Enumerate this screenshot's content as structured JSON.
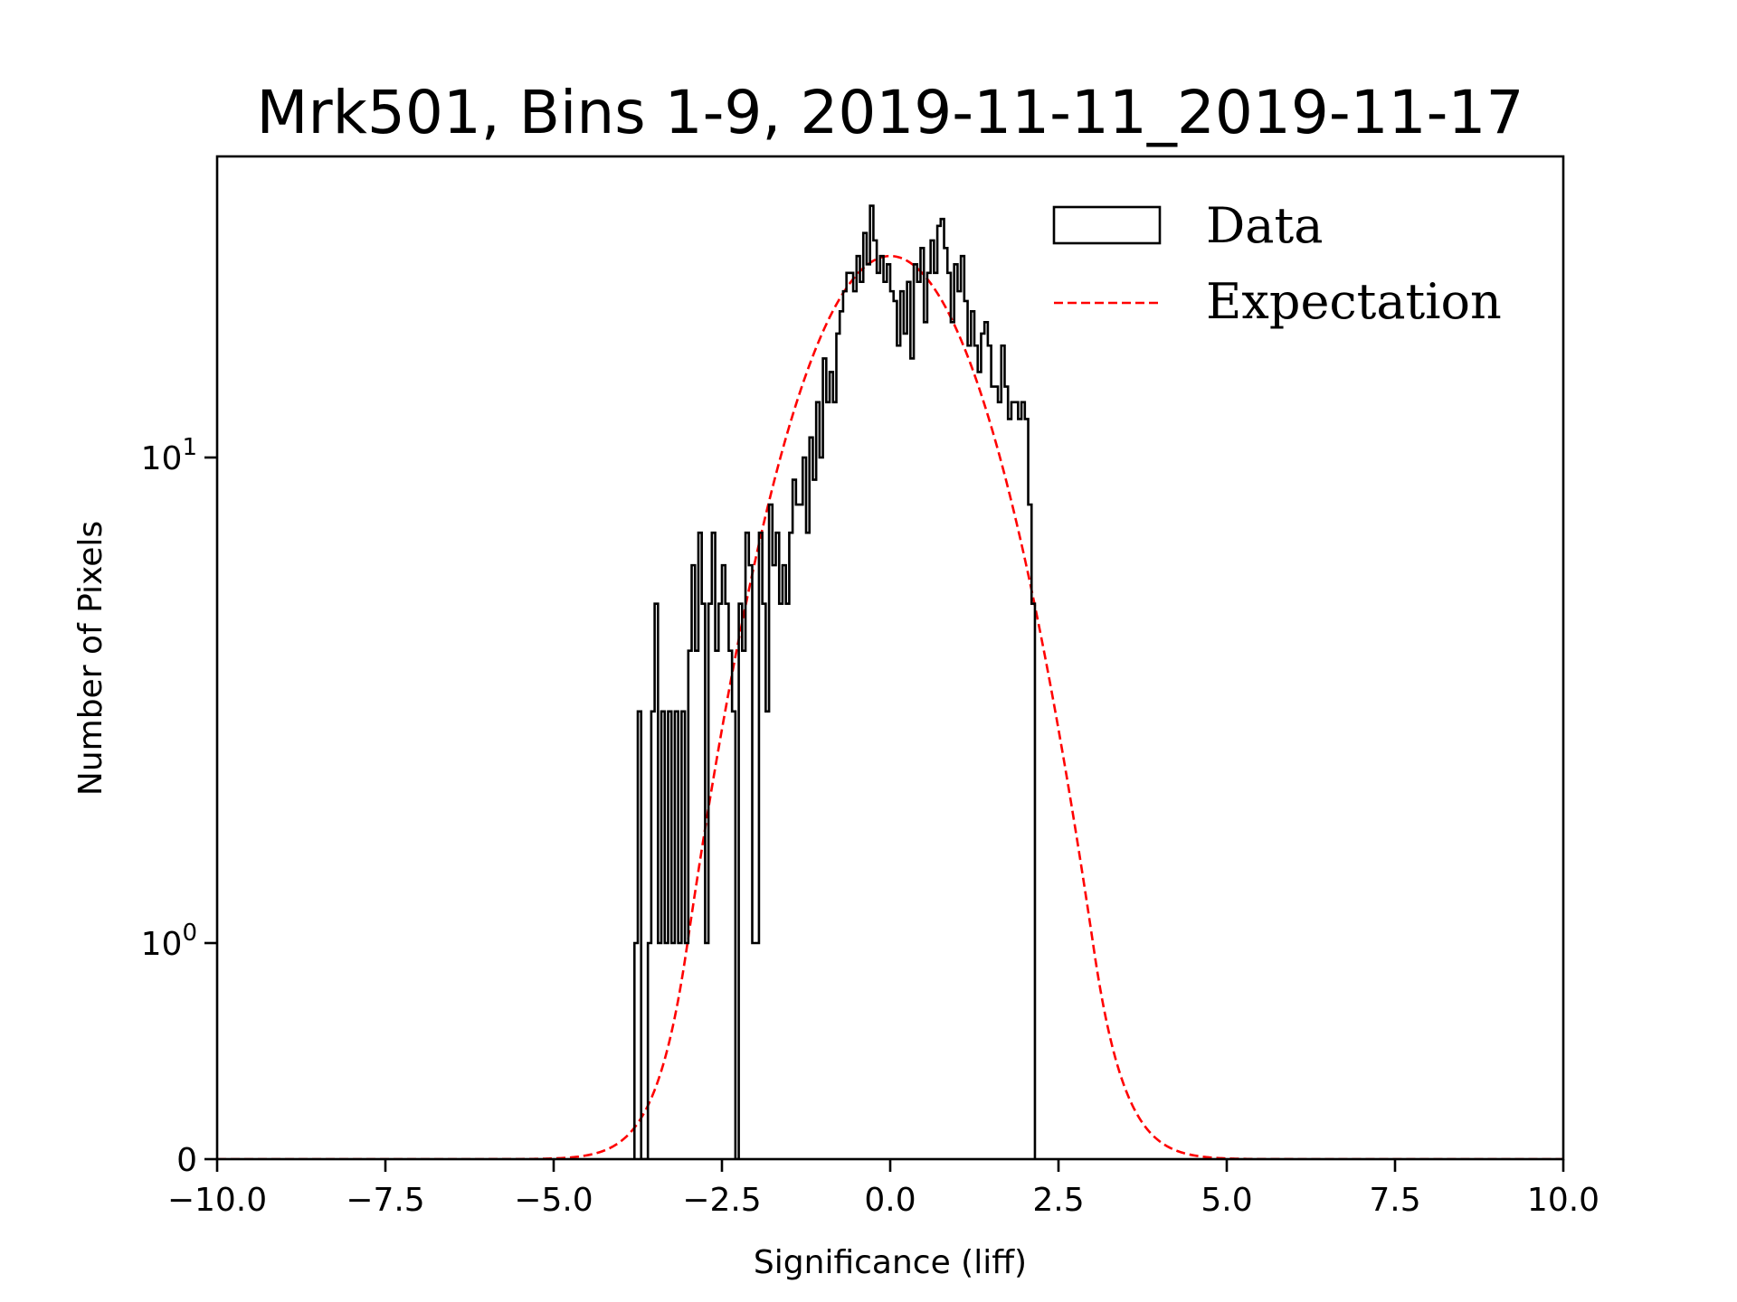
{
  "chart_data": {
    "type": "histogram",
    "title": "Mrk501, Bins 1-9, 2019-11-11_2019-11-17",
    "xlabel": "Significance (liff)",
    "ylabel": "Number of Pixels",
    "xlim": [
      -10.0,
      10.0
    ],
    "yscale": "symlog",
    "ylim": [
      0,
      42
    ],
    "xticks": [
      -10.0,
      -7.5,
      -5.0,
      -2.5,
      0.0,
      2.5,
      5.0,
      7.5,
      10.0
    ],
    "xtick_labels": [
      "−10.0",
      "−7.5",
      "−5.0",
      "−2.5",
      "0.0",
      "2.5",
      "5.0",
      "7.5",
      "10.0"
    ],
    "yticks": [
      {
        "value": 0,
        "base": "0",
        "exp": ""
      },
      {
        "value": 1,
        "base": "10",
        "exp": "0"
      },
      {
        "value": 10,
        "base": "10",
        "exp": "1"
      }
    ],
    "grid": false,
    "legend_position": "top-right",
    "legend": [
      {
        "label": "Data",
        "style": "step-outline",
        "color": "#000000"
      },
      {
        "label": "Expectation",
        "style": "dashed",
        "color": "#ff0000"
      }
    ],
    "series": [
      {
        "name": "Data",
        "kind": "step-histogram",
        "color": "#000000",
        "bin_start": -3.8,
        "bin_width": 0.05,
        "counts": [
          1,
          3,
          0,
          0,
          1,
          3,
          5,
          1,
          3,
          1,
          3,
          1,
          3,
          1,
          3,
          1,
          4,
          6,
          4,
          7,
          5,
          1,
          5,
          7,
          4,
          5,
          6,
          5,
          4,
          3,
          0,
          5,
          4,
          7,
          6,
          1,
          1,
          7,
          5,
          3,
          8,
          6,
          7,
          5,
          6,
          5,
          7,
          9,
          8,
          8,
          10,
          7,
          11,
          9,
          13,
          10,
          16,
          13,
          15,
          13,
          18,
          20,
          22,
          24,
          24,
          22,
          26,
          23,
          29,
          25,
          33,
          28,
          24,
          26,
          23,
          25,
          22,
          21,
          17,
          22,
          18,
          23,
          16,
          25,
          23,
          27,
          19,
          24,
          28,
          24,
          30,
          31,
          27,
          24,
          19,
          25,
          22,
          26,
          21,
          17,
          20,
          17,
          15,
          18,
          19,
          17,
          14,
          14,
          13,
          17,
          14,
          12,
          13,
          13,
          12,
          13,
          12,
          8,
          5
        ]
      },
      {
        "name": "Expectation",
        "kind": "gaussian",
        "color": "#ff0000",
        "amplitude": 26,
        "mean": 0.0,
        "sigma": 1.18
      }
    ]
  }
}
